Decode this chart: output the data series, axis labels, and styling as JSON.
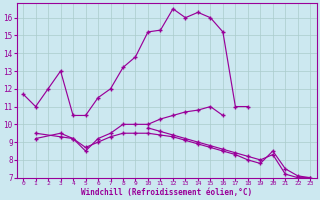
{
  "xlabel": "Windchill (Refroidissement éolien,°C)",
  "background_color": "#cce8f0",
  "line_color": "#990099",
  "grid_color": "#aacccc",
  "xlim": [
    -0.5,
    23.5
  ],
  "ylim": [
    7,
    16.8
  ],
  "xticks": [
    0,
    1,
    2,
    3,
    4,
    5,
    6,
    7,
    8,
    9,
    10,
    11,
    12,
    13,
    14,
    15,
    16,
    17,
    18,
    19,
    20,
    21,
    22,
    23
  ],
  "yticks": [
    7,
    8,
    9,
    10,
    11,
    12,
    13,
    14,
    15,
    16
  ],
  "series": [
    {
      "x": [
        0,
        1,
        2,
        3,
        4,
        5,
        6,
        7,
        8,
        9,
        10,
        11,
        12,
        13,
        14,
        15,
        16,
        17,
        18
      ],
      "y": [
        11.7,
        11.0,
        12.0,
        13.0,
        10.5,
        10.5,
        11.5,
        12.0,
        13.2,
        13.8,
        15.2,
        15.3,
        16.5,
        16.0,
        16.3,
        16.0,
        15.2,
        11.0,
        11.0
      ]
    },
    {
      "x": [
        1,
        3,
        4,
        5,
        6,
        7,
        8,
        9,
        10,
        11,
        12,
        13,
        14,
        15,
        16
      ],
      "y": [
        9.2,
        9.5,
        9.2,
        8.5,
        9.2,
        9.5,
        10.0,
        10.0,
        10.0,
        10.3,
        10.5,
        10.7,
        10.8,
        11.0,
        10.5
      ]
    },
    {
      "x": [
        10,
        11,
        12,
        13,
        14,
        15,
        16,
        17,
        18,
        19,
        20,
        21,
        22,
        23
      ],
      "y": [
        9.8,
        9.6,
        9.4,
        9.2,
        9.0,
        8.8,
        8.6,
        8.4,
        8.2,
        8.0,
        8.3,
        7.2,
        7.0,
        7.0
      ]
    },
    {
      "x": [
        1,
        3,
        4,
        5,
        6,
        7,
        8,
        9,
        10,
        11,
        12,
        13,
        14,
        15,
        16,
        17,
        18,
        19,
        20,
        21,
        22,
        23
      ],
      "y": [
        9.5,
        9.3,
        9.2,
        8.7,
        9.0,
        9.3,
        9.5,
        9.5,
        9.5,
        9.4,
        9.3,
        9.1,
        8.9,
        8.7,
        8.5,
        8.3,
        8.0,
        7.8,
        8.5,
        7.5,
        7.1,
        7.0
      ]
    }
  ]
}
